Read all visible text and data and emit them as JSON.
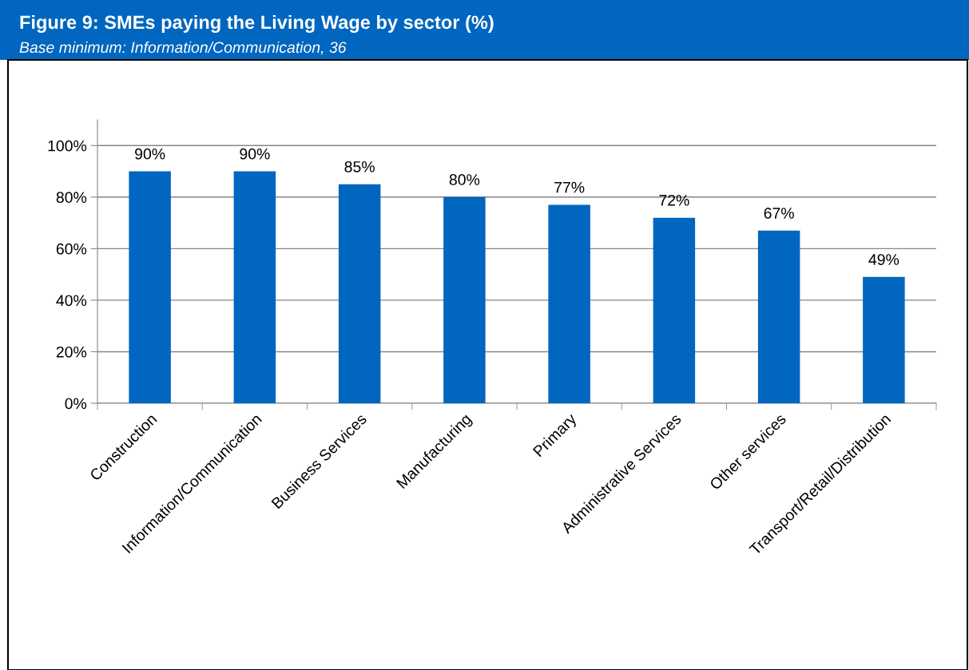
{
  "chart_data": {
    "type": "bar",
    "title": "Figure 9: SMEs paying the Living Wage by sector (%)",
    "subtitle": "Base minimum: Information/Communication, 36",
    "categories": [
      "Construction",
      "Information/Communication",
      "Business Services",
      "Manufacturing",
      "Primary",
      "Administrative Services",
      "Other services",
      "Transport/Retail/Distribution"
    ],
    "values": [
      90,
      90,
      85,
      80,
      77,
      72,
      67,
      49
    ],
    "value_labels": [
      "90%",
      "90%",
      "85%",
      "80%",
      "77%",
      "72%",
      "67%",
      "49%"
    ],
    "color": "#0066c0",
    "ylim": [
      0,
      110
    ],
    "yticks": [
      {
        "value": 0,
        "label": "0%"
      },
      {
        "value": 20,
        "label": "20%"
      },
      {
        "value": 40,
        "label": "40%"
      },
      {
        "value": 60,
        "label": "60%"
      },
      {
        "value": 80,
        "label": "80%"
      },
      {
        "value": 100,
        "label": "100%"
      }
    ],
    "grid": "y",
    "legend": false
  }
}
